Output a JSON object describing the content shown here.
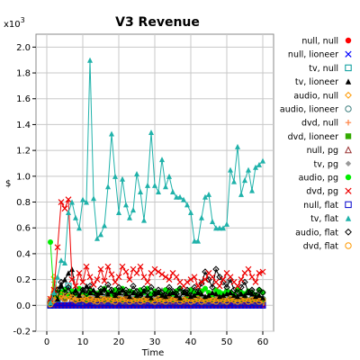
{
  "chart_data": {
    "type": "line",
    "title": "V3 Revenue",
    "xlabel": "Time",
    "ylabel": "$",
    "y_multiplier_label": "x10",
    "y_multiplier_exp": "3",
    "xlim": [
      -3,
      63
    ],
    "ylim": [
      -0.2,
      2.1
    ],
    "x_ticks": [
      0,
      10,
      20,
      30,
      40,
      50,
      60
    ],
    "y_ticks": [
      -0.2,
      0.0,
      0.2,
      0.4,
      0.6,
      0.8,
      1.0,
      1.2,
      1.4,
      1.6,
      1.8,
      2.0
    ],
    "y_tick_labels": [
      "-0.2",
      "0.0",
      "0.2",
      "0.4",
      "0.6",
      "0.8",
      "1.0",
      "1.2",
      "1.4",
      "1.6",
      "1.8",
      "2.0"
    ],
    "grid": true,
    "legend_position": "right",
    "x": [
      1,
      2,
      3,
      4,
      5,
      6,
      7,
      8,
      9,
      10,
      11,
      12,
      13,
      14,
      15,
      16,
      17,
      18,
      19,
      20,
      21,
      22,
      23,
      24,
      25,
      26,
      27,
      28,
      29,
      30,
      31,
      32,
      33,
      34,
      35,
      36,
      37,
      38,
      39,
      40,
      41,
      42,
      43,
      44,
      45,
      46,
      47,
      48,
      49,
      50,
      51,
      52,
      53,
      54,
      55,
      56,
      57,
      58,
      59,
      60
    ],
    "series": [
      {
        "name": "null, null",
        "color": "#ff0000",
        "marker": "circle-filled",
        "values": [
          0,
          0,
          0,
          0,
          0,
          0,
          0,
          0,
          0,
          0,
          0,
          0,
          0,
          0,
          0,
          0,
          0,
          0,
          0,
          0,
          0,
          0,
          0,
          0,
          0,
          0,
          0,
          0,
          0,
          0,
          0,
          0,
          0,
          0,
          0,
          0,
          0,
          0,
          0,
          0,
          0,
          0,
          0,
          0,
          0,
          0,
          0,
          0,
          0,
          0,
          0,
          0,
          0,
          0,
          0,
          0,
          0,
          0,
          0,
          0
        ]
      },
      {
        "name": "null, lioneer",
        "color": "#0000ff",
        "marker": "x",
        "values": [
          0,
          0,
          0,
          0,
          0,
          0,
          0,
          0,
          0,
          0,
          0,
          0,
          0,
          0,
          0,
          0,
          0,
          0,
          0,
          0,
          0,
          0,
          0,
          0,
          0,
          0,
          0,
          0,
          0,
          0,
          0,
          0,
          0,
          0,
          0,
          0,
          0,
          0,
          0,
          0,
          0,
          0,
          0,
          0,
          0,
          0,
          0,
          0,
          0,
          0,
          0,
          0,
          0,
          0,
          0,
          0,
          0,
          0,
          0,
          0
        ]
      },
      {
        "name": "tv, null",
        "color": "#009999",
        "marker": "square-open",
        "values": [
          0,
          0.02,
          0.05,
          0.08,
          0.12,
          0.15,
          0.1,
          0.06,
          0.03,
          0.02,
          0.04,
          0.05,
          0.03,
          0.02,
          0.04,
          0.06,
          0.03,
          0.02,
          0.04,
          0.05,
          0.03,
          0.02,
          0.04,
          0.03,
          0.02,
          0.03,
          0.02,
          0.04,
          0.03,
          0.02,
          0.03,
          0.04,
          0.02,
          0.03,
          0.04,
          0.02,
          0.03,
          0.02,
          0.04,
          0.03,
          0.02,
          0.03,
          0.04,
          0.02,
          0.03,
          0.02,
          0.04,
          0.03,
          0.02,
          0.03,
          0.04,
          0.02,
          0.03,
          0.02,
          0.04,
          0.03,
          0.02,
          0.03,
          0.02,
          0.03
        ]
      },
      {
        "name": "tv, lioneer",
        "color": "#000000",
        "marker": "triangle-filled",
        "values": [
          0.02,
          0.1,
          0.05,
          0.15,
          0.2,
          0.25,
          0.28,
          0.12,
          0.08,
          0.12,
          0.15,
          0.1,
          0.12,
          0.08,
          0.1,
          0.13,
          0.09,
          0.11,
          0.08,
          0.1,
          0.12,
          0.09,
          0.07,
          0.1,
          0.08,
          0.09,
          0.11,
          0.08,
          0.06,
          0.09,
          0.1,
          0.08,
          0.07,
          0.09,
          0.1,
          0.08,
          0.06,
          0.1,
          0.09,
          0.07,
          0.08,
          0.1,
          0.09,
          0.07,
          0.08,
          0.1,
          0.09,
          0.07,
          0.08,
          0.09,
          0.1,
          0.08,
          0.07,
          0.09,
          0.08,
          0.1,
          0.09,
          0.07,
          0.08,
          0.06
        ]
      },
      {
        "name": "audio, null",
        "color": "#ff9900",
        "marker": "diamond-open",
        "values": [
          0.05,
          0.22,
          0.12,
          0.08,
          0.05,
          0.1,
          0.06,
          0.04,
          0.05,
          0.03,
          0.04,
          0.05,
          0.03,
          0.04,
          0.02,
          0.03,
          0.05,
          0.03,
          0.02,
          0.04,
          0.03,
          0.02,
          0.03,
          0.04,
          0.02,
          0.03,
          0.02,
          0.04,
          0.03,
          0.02,
          0.03,
          0.02,
          0.04,
          0.03,
          0.02,
          0.03,
          0.04,
          0.02,
          0.03,
          0.02,
          0.04,
          0.03,
          0.02,
          0.03,
          0.02,
          0.04,
          0.03,
          0.02,
          0.03,
          0.02,
          0.04,
          0.03,
          0.02,
          0.03,
          0.02,
          0.03,
          0.04,
          0.02,
          0.03,
          0.02
        ]
      },
      {
        "name": "audio, lioneer",
        "color": "#408080",
        "marker": "circle-open",
        "values": [
          0.03,
          0.08,
          0.12,
          0.1,
          0.06,
          0.09,
          0.07,
          0.05,
          0.06,
          0.08,
          0.05,
          0.07,
          0.06,
          0.04,
          0.06,
          0.05,
          0.07,
          0.05,
          0.04,
          0.06,
          0.05,
          0.07,
          0.04,
          0.05,
          0.06,
          0.04,
          0.05,
          0.07,
          0.05,
          0.04,
          0.06,
          0.05,
          0.04,
          0.06,
          0.05,
          0.07,
          0.04,
          0.05,
          0.06,
          0.04,
          0.05,
          0.06,
          0.04,
          0.05,
          0.06,
          0.05,
          0.04,
          0.06,
          0.05,
          0.04,
          0.06,
          0.05,
          0.04,
          0.05,
          0.06,
          0.04,
          0.05,
          0.06,
          0.04,
          0.05
        ]
      },
      {
        "name": "dvd, null",
        "color": "#ff8040",
        "marker": "plus",
        "values": [
          0.02,
          0.18,
          0.1,
          0.06,
          0.08,
          0.12,
          0.07,
          0.05,
          0.06,
          0.04,
          0.05,
          0.06,
          0.04,
          0.05,
          0.03,
          0.05,
          0.06,
          0.04,
          0.03,
          0.05,
          0.04,
          0.03,
          0.05,
          0.04,
          0.03,
          0.04,
          0.05,
          0.03,
          0.04,
          0.05,
          0.03,
          0.04,
          0.03,
          0.05,
          0.04,
          0.03,
          0.04,
          0.05,
          0.03,
          0.04,
          0.03,
          0.05,
          0.04,
          0.03,
          0.04,
          0.03,
          0.05,
          0.04,
          0.03,
          0.04,
          0.05,
          0.03,
          0.04,
          0.03,
          0.05,
          0.04,
          0.03,
          0.04,
          0.03,
          0.04
        ]
      },
      {
        "name": "dvd, lioneer",
        "color": "#33aa00",
        "marker": "square-filled",
        "values": [
          0.01,
          0.06,
          0.1,
          0.08,
          0.05,
          0.07,
          0.06,
          0.04,
          0.05,
          0.06,
          0.04,
          0.05,
          0.04,
          0.03,
          0.05,
          0.04,
          0.06,
          0.04,
          0.03,
          0.05,
          0.04,
          0.05,
          0.03,
          0.04,
          0.05,
          0.03,
          0.04,
          0.05,
          0.04,
          0.03,
          0.05,
          0.04,
          0.03,
          0.05,
          0.04,
          0.05,
          0.03,
          0.04,
          0.05,
          0.03,
          0.04,
          0.05,
          0.03,
          0.04,
          0.05,
          0.04,
          0.03,
          0.05,
          0.04,
          0.03,
          0.05,
          0.04,
          0.03,
          0.04,
          0.05,
          0.03,
          0.04,
          0.05,
          0.03,
          0.04
        ]
      },
      {
        "name": "null, pg",
        "color": "#993333",
        "marker": "triangle-open",
        "values": [
          0.01,
          0.04,
          0.07,
          0.09,
          0.06,
          0.08,
          0.05,
          0.04,
          0.05,
          0.07,
          0.04,
          0.06,
          0.05,
          0.03,
          0.05,
          0.04,
          0.06,
          0.04,
          0.03,
          0.05,
          0.04,
          0.06,
          0.03,
          0.04,
          0.05,
          0.03,
          0.04,
          0.06,
          0.04,
          0.03,
          0.05,
          0.04,
          0.03,
          0.05,
          0.04,
          0.06,
          0.03,
          0.04,
          0.05,
          0.03,
          0.04,
          0.05,
          0.03,
          0.04,
          0.05,
          0.04,
          0.03,
          0.05,
          0.04,
          0.03,
          0.05,
          0.04,
          0.03,
          0.04,
          0.05,
          0.03,
          0.04,
          0.05,
          0.03,
          0.04
        ]
      },
      {
        "name": "tv, pg",
        "color": "#999999",
        "marker": "diamond-filled",
        "values": [
          0.02,
          0.05,
          0.08,
          0.1,
          0.07,
          0.12,
          0.09,
          0.06,
          0.1,
          0.08,
          0.12,
          0.09,
          0.07,
          0.1,
          0.08,
          0.11,
          0.09,
          0.07,
          0.1,
          0.12,
          0.08,
          0.1,
          0.07,
          0.09,
          0.11,
          0.08,
          0.1,
          0.12,
          0.09,
          0.07,
          0.1,
          0.12,
          0.08,
          0.1,
          0.09,
          0.11,
          0.08,
          0.1,
          0.12,
          0.09,
          0.07,
          0.1,
          0.08,
          0.12,
          0.1,
          0.07,
          0.09,
          0.11,
          0.08,
          0.18,
          0.1,
          0.07,
          0.09,
          0.11,
          0.08,
          0.1,
          0.12,
          0.08,
          0.1,
          0.09
        ]
      },
      {
        "name": "audio, pg",
        "color": "#00ee00",
        "marker": "circle-filled",
        "values": [
          0.49,
          0.08,
          0.06,
          0.1,
          0.12,
          0.08,
          0.11,
          0.09,
          0.13,
          0.1,
          0.08,
          0.12,
          0.1,
          0.09,
          0.11,
          0.13,
          0.1,
          0.08,
          0.12,
          0.1,
          0.13,
          0.09,
          0.11,
          0.1,
          0.08,
          0.12,
          0.1,
          0.13,
          0.09,
          0.11,
          0.1,
          0.08,
          0.12,
          0.1,
          0.09,
          0.11,
          0.13,
          0.1,
          0.08,
          0.12,
          0.1,
          0.09,
          0.11,
          0.13,
          0.1,
          0.08,
          0.12,
          0.1,
          0.09,
          0.11,
          0.1,
          0.08,
          0.12,
          0.1,
          0.09,
          0.11,
          0.1,
          0.08,
          0.12,
          0.1
        ]
      },
      {
        "name": "dvd, pg",
        "color": "#ee0000",
        "marker": "x",
        "values": [
          0.05,
          0.12,
          0.45,
          0.8,
          0.75,
          0.82,
          0.2,
          0.15,
          0.25,
          0.18,
          0.3,
          0.22,
          0.16,
          0.2,
          0.28,
          0.19,
          0.3,
          0.24,
          0.18,
          0.22,
          0.3,
          0.26,
          0.2,
          0.28,
          0.25,
          0.3,
          0.22,
          0.18,
          0.25,
          0.28,
          0.26,
          0.24,
          0.22,
          0.2,
          0.25,
          0.22,
          0.18,
          0.15,
          0.18,
          0.2,
          0.22,
          0.15,
          0.18,
          0.2,
          0.25,
          0.22,
          0.18,
          0.15,
          0.2,
          0.25,
          0.22,
          0.18,
          0.15,
          0.2,
          0.25,
          0.28,
          0.22,
          0.18,
          0.25,
          0.26
        ]
      },
      {
        "name": "null, flat",
        "color": "#0000cc",
        "marker": "square-open",
        "values": [
          0,
          0,
          0,
          0,
          0,
          0,
          0,
          0,
          0,
          0,
          0,
          0,
          0,
          0,
          0,
          0,
          0,
          0,
          0,
          0,
          0,
          0,
          0,
          0,
          0,
          0,
          0,
          0,
          0,
          0,
          0,
          0,
          0,
          0,
          0,
          0,
          0,
          0,
          0,
          0,
          0,
          0,
          0,
          0,
          0,
          0,
          0,
          0,
          0,
          0,
          0,
          0,
          0,
          0,
          0,
          0,
          0,
          0,
          0,
          0
        ]
      },
      {
        "name": "tv, flat",
        "color": "#20b2aa",
        "marker": "triangle-filled",
        "values": [
          0.02,
          0.1,
          0.22,
          0.35,
          0.33,
          0.72,
          0.8,
          0.68,
          0.6,
          0.82,
          0.8,
          1.9,
          0.83,
          0.52,
          0.55,
          0.62,
          0.92,
          1.33,
          1.0,
          0.72,
          0.98,
          0.78,
          0.68,
          0.74,
          1.02,
          0.88,
          0.66,
          0.93,
          1.34,
          0.93,
          0.88,
          1.13,
          0.92,
          1.0,
          0.88,
          0.84,
          0.84,
          0.82,
          0.78,
          0.72,
          0.5,
          0.5,
          0.68,
          0.84,
          0.86,
          0.65,
          0.6,
          0.6,
          0.6,
          0.63,
          1.05,
          0.96,
          1.23,
          0.86,
          0.97,
          1.05,
          0.89,
          1.07,
          1.09,
          1.12
        ]
      },
      {
        "name": "audio, flat",
        "color": "#000000",
        "marker": "diamond-open",
        "values": [
          0.02,
          0.08,
          0.12,
          0.18,
          0.1,
          0.14,
          0.08,
          0.1,
          0.06,
          0.12,
          0.09,
          0.15,
          0.1,
          0.08,
          0.13,
          0.1,
          0.16,
          0.12,
          0.08,
          0.14,
          0.1,
          0.12,
          0.09,
          0.15,
          0.11,
          0.08,
          0.13,
          0.1,
          0.14,
          0.09,
          0.12,
          0.1,
          0.08,
          0.14,
          0.11,
          0.09,
          0.13,
          0.1,
          0.12,
          0.08,
          0.14,
          0.11,
          0.17,
          0.26,
          0.2,
          0.14,
          0.28,
          0.22,
          0.18,
          0.14,
          0.2,
          0.12,
          0.1,
          0.14,
          0.18,
          0.1,
          0.12,
          0.08,
          0.12,
          0.1
        ]
      },
      {
        "name": "dvd, flat",
        "color": "#ff9900",
        "marker": "circle-open",
        "values": [
          0.01,
          0.04,
          0.06,
          0.08,
          0.05,
          0.07,
          0.06,
          0.04,
          0.05,
          0.06,
          0.04,
          0.05,
          0.04,
          0.03,
          0.05,
          0.04,
          0.06,
          0.04,
          0.03,
          0.05,
          0.04,
          0.05,
          0.03,
          0.04,
          0.05,
          0.03,
          0.04,
          0.05,
          0.04,
          0.03,
          0.05,
          0.04,
          0.03,
          0.05,
          0.04,
          0.05,
          0.03,
          0.04,
          0.05,
          0.03,
          0.04,
          0.05,
          0.03,
          0.04,
          0.05,
          0.04,
          0.03,
          0.05,
          0.04,
          0.03,
          0.05,
          0.04,
          0.03,
          0.04,
          0.05,
          0.03,
          0.04,
          0.05,
          0.03,
          0.04
        ]
      }
    ]
  }
}
